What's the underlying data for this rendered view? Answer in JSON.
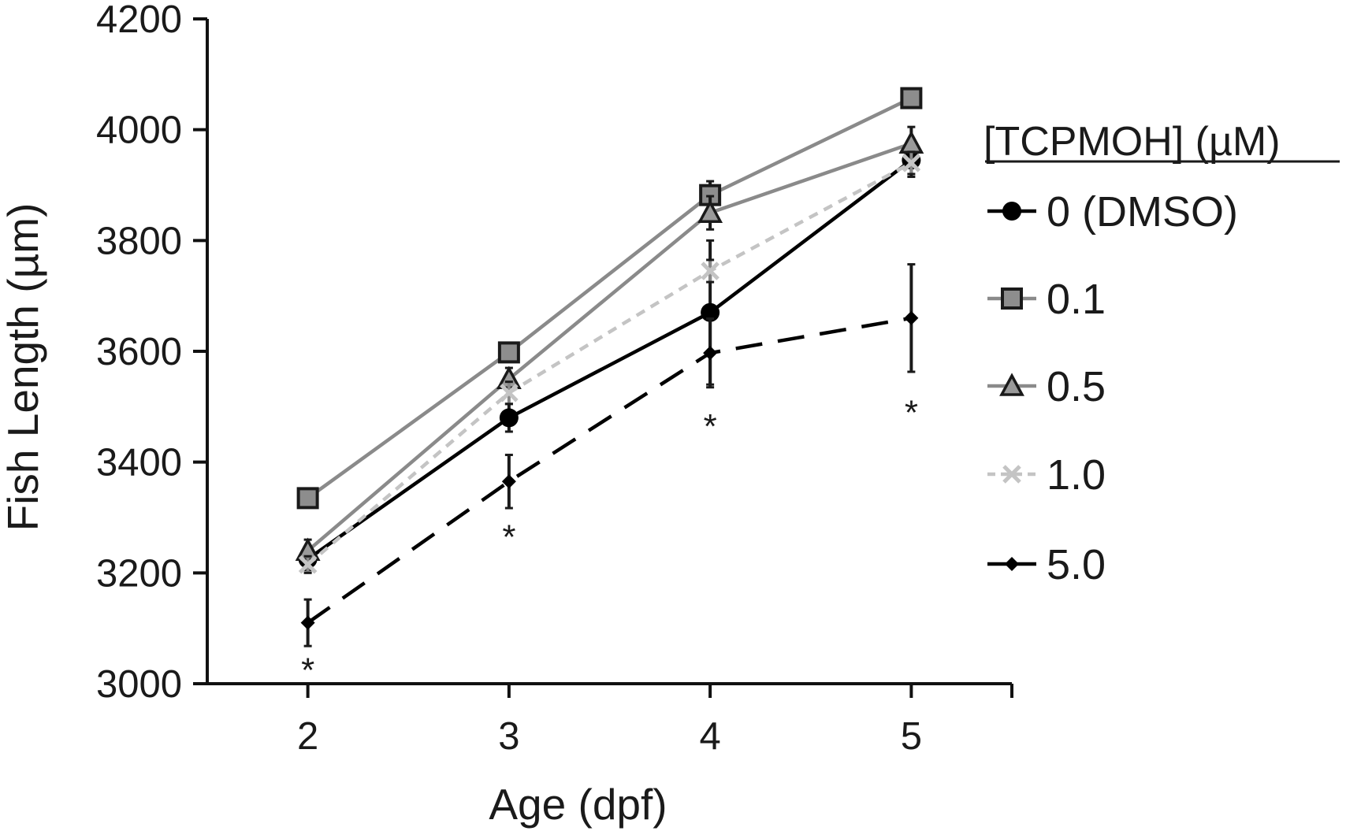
{
  "chart_data": {
    "type": "line",
    "title": "",
    "xlabel": "Age (dpf)",
    "ylabel": "Fish Length (µm)",
    "x": [
      2,
      3,
      4,
      5
    ],
    "xlim": [
      1.5,
      5.5
    ],
    "ylim": [
      3000,
      4200
    ],
    "yticks": [
      3000,
      3200,
      3400,
      3600,
      3800,
      4000,
      4200
    ],
    "xticks": [
      2,
      3,
      4,
      5
    ],
    "grid": false,
    "legend": {
      "title": "[TCPMOH] (µM)",
      "placement": "right"
    },
    "series": [
      {
        "name": "0 (DMSO)",
        "values": [
          3225,
          3480,
          3670,
          3945
        ],
        "error": [
          20,
          25,
          130,
          30
        ],
        "color": "#000000",
        "marker": "circle",
        "dash": "solid"
      },
      {
        "name": "0.1",
        "values": [
          3335,
          3598,
          3882,
          4057
        ],
        "error": [
          15,
          15,
          25,
          15
        ],
        "color": "#8a8a8a",
        "marker": "square",
        "dash": "solid"
      },
      {
        "name": "0.5",
        "values": [
          3240,
          3550,
          3850,
          3975
        ],
        "error": [
          20,
          20,
          30,
          30
        ],
        "color": "#8a8a8a",
        "marker": "triangle",
        "dash": "solid"
      },
      {
        "name": "1.0",
        "values": [
          3215,
          3525,
          3745,
          3940
        ],
        "error": [
          15,
          20,
          20,
          20
        ],
        "color": "#c4c4c4",
        "marker": "x",
        "dash": "short"
      },
      {
        "name": "5.0",
        "values": [
          3110,
          3365,
          3597,
          3660
        ],
        "error": [
          42,
          48,
          62,
          97
        ],
        "color": "#000000",
        "marker": "diamond",
        "dash": "long"
      }
    ],
    "annotations": [
      {
        "text": "*",
        "x": 2,
        "y": 3025
      },
      {
        "text": "*",
        "x": 3,
        "y": 3265
      },
      {
        "text": "*",
        "x": 4,
        "y": 3465
      },
      {
        "text": "*",
        "x": 5,
        "y": 3490
      }
    ]
  }
}
